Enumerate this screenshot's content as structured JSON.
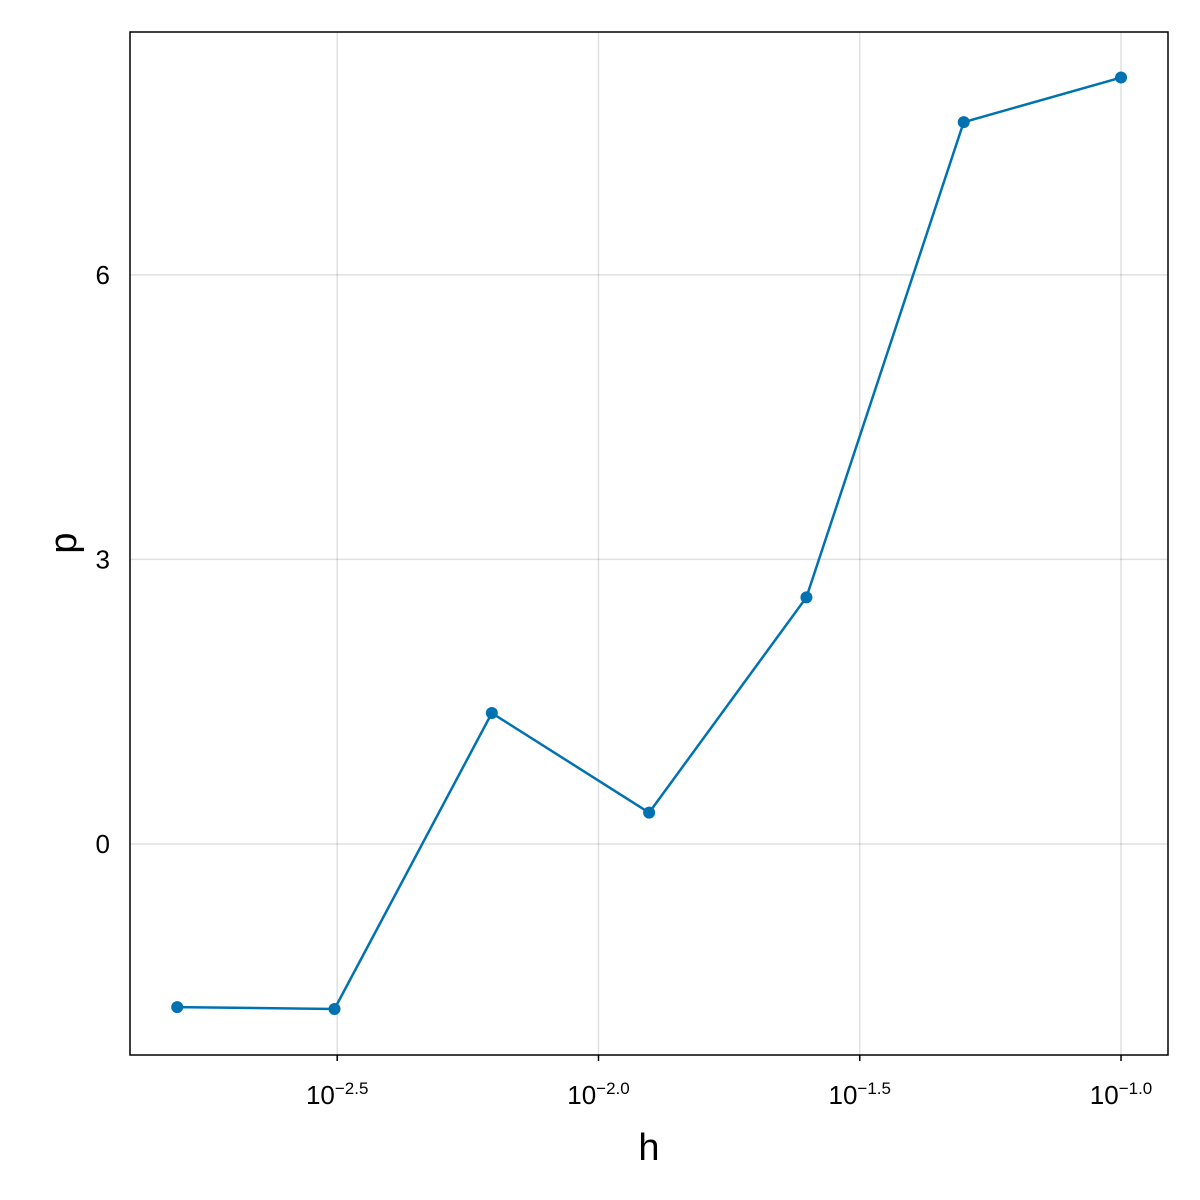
{
  "chart_data": {
    "type": "line",
    "x_label": "h",
    "y_label": "p",
    "x": [
      0.0015625,
      0.003125,
      0.00625,
      0.0125,
      0.025,
      0.05,
      0.1
    ],
    "series": [
      {
        "color": "#0072b2",
        "values": [
          -1.72,
          -1.74,
          1.38,
          0.33,
          2.6,
          7.61,
          8.08
        ]
      }
    ],
    "x_log": true,
    "xlim": [
      0.001269,
      0.123
    ],
    "xticks": [
      {
        "value": 0.0031623,
        "label": "10−2.5"
      },
      {
        "value": 0.01,
        "label": "10−2.0"
      },
      {
        "value": 0.031623,
        "label": "10−1.5"
      },
      {
        "value": 0.1,
        "label": "10−1.0"
      }
    ],
    "ylim": [
      -2.225,
      8.56
    ],
    "yticks": [
      0,
      3,
      6
    ],
    "grid": true
  }
}
